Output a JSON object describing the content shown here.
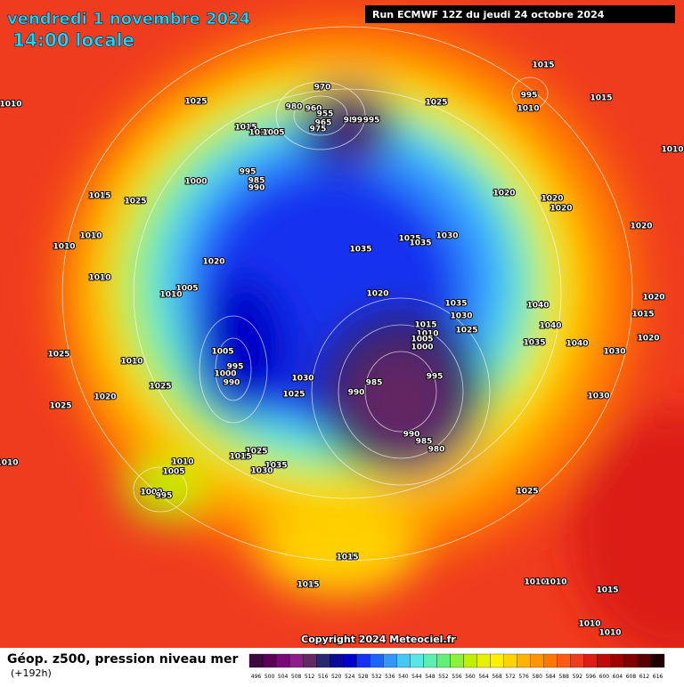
{
  "header": {
    "date": "vendredi 1 novembre 2024",
    "time": "14:00 locale",
    "run": "Run ECMWF 12Z du jeudi 24 octobre 2024"
  },
  "footer": {
    "copyright": "Copyright 2024 Meteociel.fr",
    "legend_title": "Géop. z500, pression niveau mer",
    "lead": "(+192h)"
  },
  "colorbar": {
    "labels": [
      496,
      500,
      504,
      508,
      512,
      516,
      520,
      524,
      528,
      532,
      536,
      540,
      544,
      548,
      552,
      556,
      560,
      564,
      568,
      572,
      576,
      580,
      584,
      588,
      592,
      596,
      600,
      604,
      608,
      612,
      616
    ],
    "colors": [
      "#3c0a3c",
      "#5a005a",
      "#780a78",
      "#8c1e8c",
      "#642864",
      "#28286e",
      "#0a0a96",
      "#0000c8",
      "#1432f0",
      "#1e64ff",
      "#3296ff",
      "#46c8f5",
      "#5ae6e6",
      "#5af0b4",
      "#64f078",
      "#8cf03c",
      "#bef000",
      "#e6f000",
      "#fff000",
      "#ffd200",
      "#ffb400",
      "#ff9600",
      "#ff7800",
      "#ff5a14",
      "#f03c1e",
      "#dc1e14",
      "#be0a0a",
      "#a00000",
      "#820000",
      "#5a0000",
      "#1e0000"
    ]
  },
  "pressure_labels": [
    970,
    960,
    980,
    955,
    965,
    975,
    985,
    990,
    995,
    1025,
    1015,
    995,
    1010,
    1015,
    1010,
    1010,
    1025,
    1015,
    1010,
    1005,
    1000,
    995,
    985,
    990,
    1015,
    1025,
    1010,
    1010,
    1020,
    1035,
    1025,
    1035,
    1030,
    1020,
    1020,
    1020,
    1020,
    1010,
    1005,
    1010,
    1020,
    1035,
    1030,
    1025,
    1040,
    1040,
    1035,
    1040,
    1015,
    1010,
    1005,
    1000,
    1025,
    1010,
    1005,
    995,
    1000,
    990,
    985,
    990,
    995,
    1030,
    1025,
    1025,
    1020,
    1025,
    1030,
    990,
    985,
    980,
    1025,
    1015,
    1035,
    1030,
    1010,
    1005,
    1000,
    995,
    1025,
    1015,
    1015,
    1010,
    1010,
    1015,
    1010,
    1010,
    1010,
    1030,
    1020,
    1020,
    1015
  ]
}
